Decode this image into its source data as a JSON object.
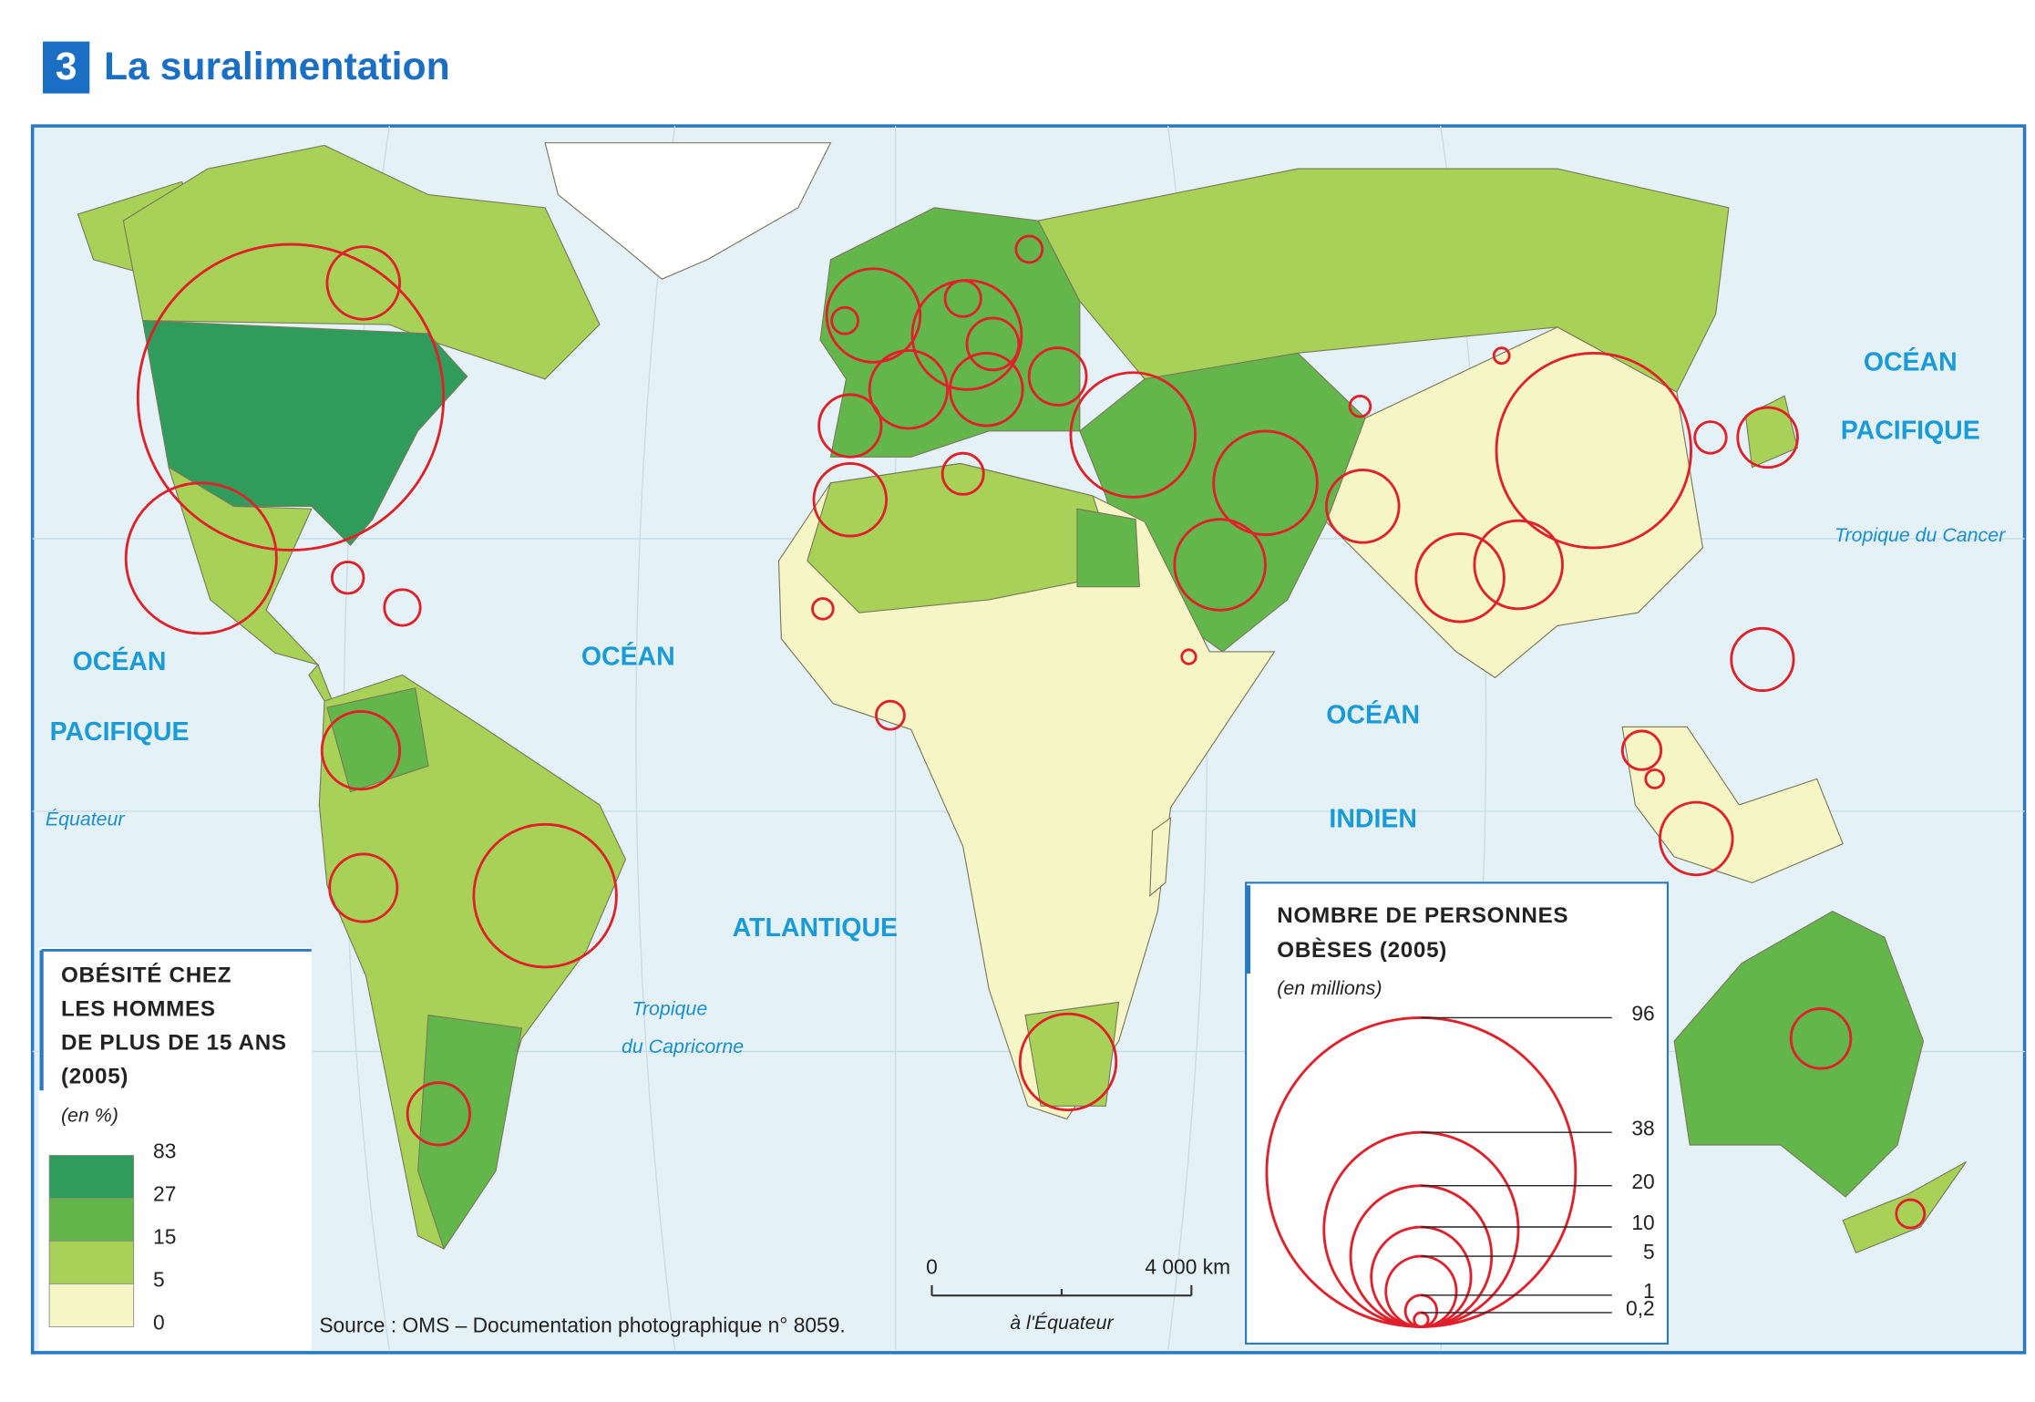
{
  "header": {
    "number": "3",
    "title": "La suralimentation"
  },
  "map": {
    "labels": [
      "OCÉAN",
      "PACIFIQUE",
      "OCÉAN",
      "ATLANTIQUE",
      "OCÉAN",
      "INDIEN",
      "OCÉAN",
      "PACIFIQUE"
    ],
    "notes": [
      "Équateur",
      "Tropique du Cancer",
      "Tropique",
      "du Capricorne"
    ],
    "bubbles": [
      94,
      5.3,
      22.8,
      1,
      1.3,
      6.1,
      4.6,
      20.5,
      3.9,
      8.8,
      0.7,
      1.3,
      0.7,
      12,
      6.1,
      5.3,
      2.7,
      3.3,
      3.9,
      15.6,
      10.8,
      5.3,
      1.7,
      8.3,
      5.3,
      7.8,
      7.8,
      38.1,
      3.6,
      1,
      0.24,
      0.43,
      3.9,
      1.5,
      0.33,
      5.3,
      3.6,
      0.8,
      9.3,
      0.8,
      0.43,
      0.2
    ]
  },
  "legend_rate": {
    "title": [
      "OBÉSITÉ CHEZ",
      "LES HOMMES",
      "DE PLUS DE 15 ANS",
      "(2005)"
    ],
    "unit": "(en %)",
    "breaks": [
      83,
      27,
      15,
      5,
      0
    ],
    "colors": [
      "#2f9c5b",
      "#63b64a",
      "#a8d257",
      "#f6f5c6"
    ]
  },
  "legend_size": {
    "title": [
      "NOMBRE DE PERSONNES",
      "OBÈSES (2005)"
    ],
    "unit": "(en millions)",
    "ticks": [
      96,
      38,
      20,
      10,
      5,
      1,
      {
        "value": 0.2,
        "label": "0,2"
      }
    ]
  },
  "scale": {
    "start": "0",
    "end": "4 000 km",
    "note": "à l'Équateur"
  },
  "source": "Source : OMS – Documentation photographique n° 8059."
}
